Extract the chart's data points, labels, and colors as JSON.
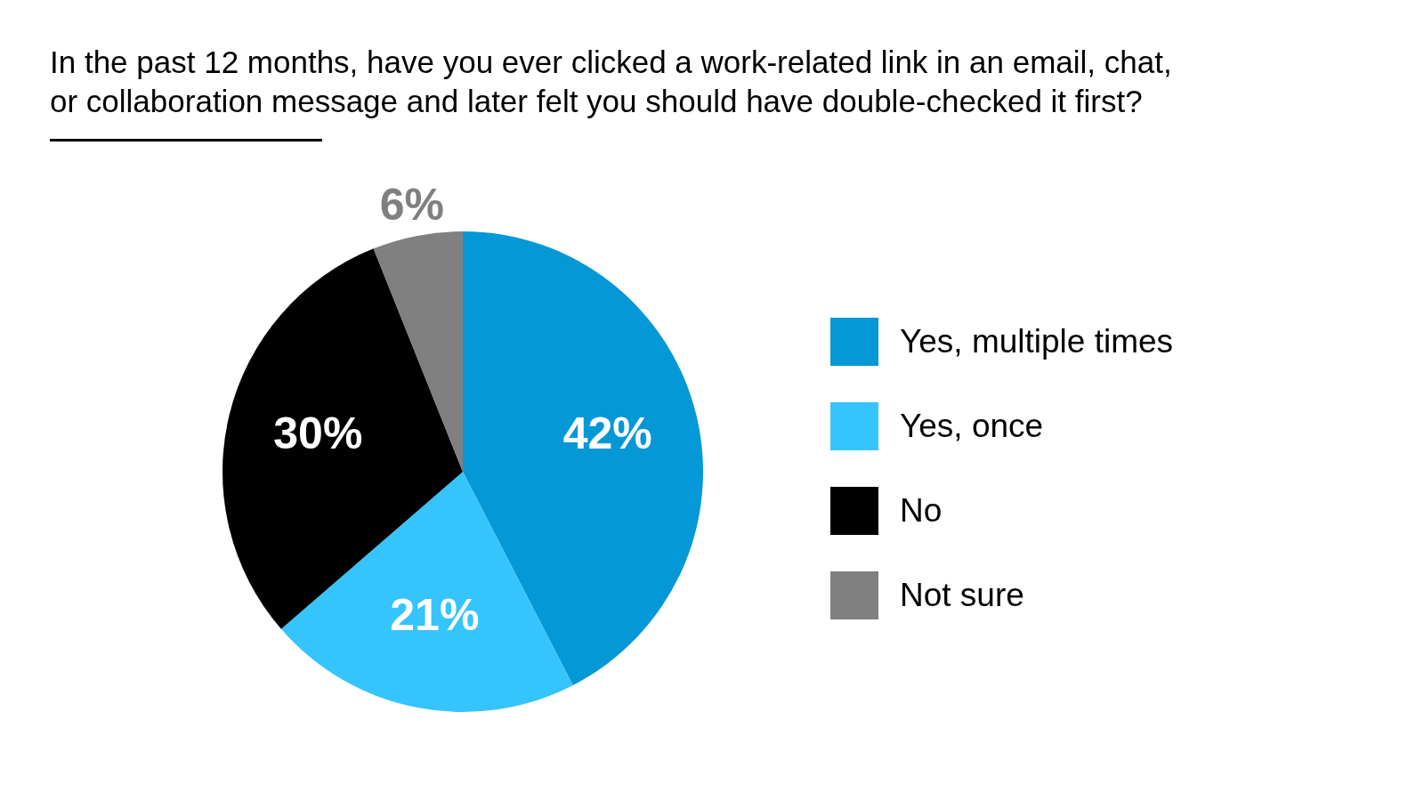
{
  "chart_data": {
    "type": "pie",
    "title": "In the past 12 months, have you ever clicked a work-related link in an email, chat, or collaboration message and later felt you should have double-checked it first?",
    "categories": [
      "Yes, multiple times",
      "Yes, once",
      "No",
      "Not sure"
    ],
    "values": [
      42,
      21,
      30,
      6
    ],
    "colors": [
      "#0598d6",
      "#36c4fd",
      "#000000",
      "#808080"
    ],
    "value_labels": [
      "42%",
      "21%",
      "30%",
      "6%"
    ],
    "legend": "right"
  }
}
